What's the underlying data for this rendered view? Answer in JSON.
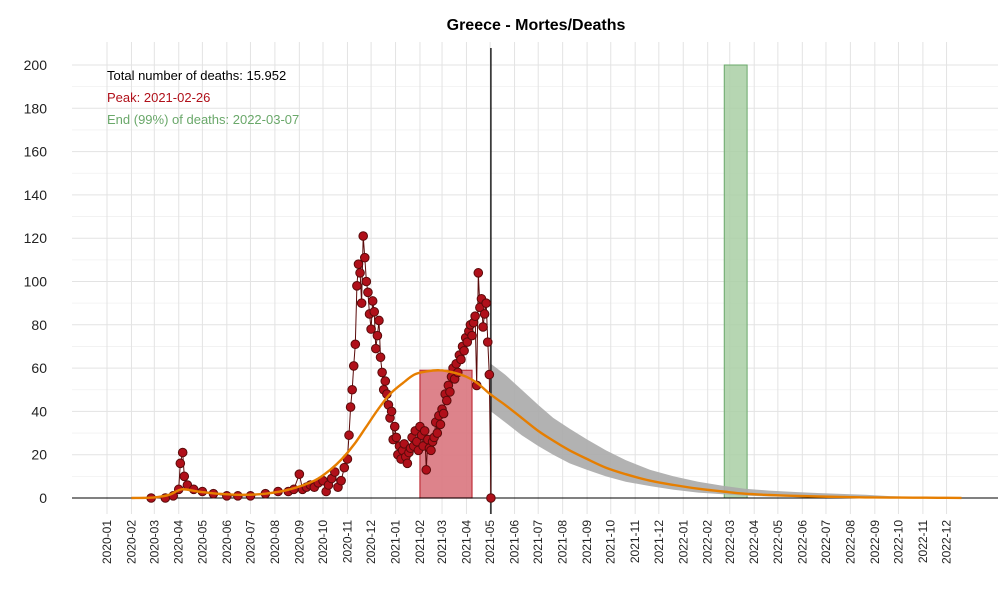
{
  "chart_data": {
    "type": "line",
    "title": "Greece - Mortes/Deaths",
    "xlabel": "",
    "ylabel": "",
    "xlim": [
      "2020-01-01",
      "2023-01-01"
    ],
    "ylim": [
      0,
      200
    ],
    "y_ticks": [
      0,
      20,
      40,
      60,
      80,
      100,
      120,
      140,
      160,
      180,
      200
    ],
    "x_ticks": [
      "2020-01",
      "2020-02",
      "2020-03",
      "2020-04",
      "2020-05",
      "2020-06",
      "2020-07",
      "2020-08",
      "2020-09",
      "2020-10",
      "2020-11",
      "2020-12",
      "2021-01",
      "2021-02",
      "2021-03",
      "2021-04",
      "2021-05",
      "2021-06",
      "2021-07",
      "2021-08",
      "2021-09",
      "2021-10",
      "2021-11",
      "2021-12",
      "2022-01",
      "2022-02",
      "2022-03",
      "2022-04",
      "2022-05",
      "2022-06",
      "2022-07",
      "2022-08",
      "2022-09",
      "2022-10",
      "2022-11",
      "2022-12"
    ],
    "grid": true,
    "annotations": {
      "total": "Total number of deaths: 15.952",
      "peak": "Peak: 2021-02-26",
      "end": "End (99%) of deaths: 2022-03-07"
    },
    "current_date": "2021-05-02",
    "peak_region": {
      "start": "2021-02-01",
      "end": "2021-04-08",
      "y": 59
    },
    "end_region": {
      "start": "2022-02-22",
      "end": "2022-03-23"
    },
    "observed_deaths": {
      "x": [
        "2020-02-26",
        "2020-03-15",
        "2020-03-25",
        "2020-04-01",
        "2020-04-03",
        "2020-04-06",
        "2020-04-08",
        "2020-04-12",
        "2020-04-20",
        "2020-05-01",
        "2020-05-15",
        "2020-06-01",
        "2020-06-15",
        "2020-07-01",
        "2020-07-20",
        "2020-08-05",
        "2020-08-18",
        "2020-08-25",
        "2020-09-01",
        "2020-09-05",
        "2020-09-10",
        "2020-09-15",
        "2020-09-20",
        "2020-09-25",
        "2020-10-01",
        "2020-10-05",
        "2020-10-08",
        "2020-10-12",
        "2020-10-16",
        "2020-10-20",
        "2020-10-24",
        "2020-10-28",
        "2020-11-01",
        "2020-11-03",
        "2020-11-05",
        "2020-11-07",
        "2020-11-09",
        "2020-11-11",
        "2020-11-13",
        "2020-11-15",
        "2020-11-17",
        "2020-11-19",
        "2020-11-21",
        "2020-11-23",
        "2020-11-25",
        "2020-11-27",
        "2020-11-29",
        "2020-12-01",
        "2020-12-03",
        "2020-12-05",
        "2020-12-07",
        "2020-12-09",
        "2020-12-11",
        "2020-12-13",
        "2020-12-15",
        "2020-12-17",
        "2020-12-19",
        "2020-12-21",
        "2020-12-23",
        "2020-12-25",
        "2020-12-27",
        "2020-12-29",
        "2020-12-31",
        "2021-01-02",
        "2021-01-04",
        "2021-01-06",
        "2021-01-08",
        "2021-01-10",
        "2021-01-12",
        "2021-01-14",
        "2021-01-16",
        "2021-01-18",
        "2021-01-20",
        "2021-01-22",
        "2021-01-24",
        "2021-01-26",
        "2021-01-28",
        "2021-01-30",
        "2021-02-01",
        "2021-02-03",
        "2021-02-05",
        "2021-02-07",
        "2021-02-09",
        "2021-02-11",
        "2021-02-13",
        "2021-02-15",
        "2021-02-17",
        "2021-02-19",
        "2021-02-21",
        "2021-02-23",
        "2021-02-25",
        "2021-02-27",
        "2021-03-01",
        "2021-03-03",
        "2021-03-05",
        "2021-03-07",
        "2021-03-09",
        "2021-03-11",
        "2021-03-13",
        "2021-03-15",
        "2021-03-17",
        "2021-03-19",
        "2021-03-21",
        "2021-03-23",
        "2021-03-25",
        "2021-03-27",
        "2021-03-29",
        "2021-03-31",
        "2021-04-02",
        "2021-04-04",
        "2021-04-06",
        "2021-04-08",
        "2021-04-10",
        "2021-04-12",
        "2021-04-14",
        "2021-04-16",
        "2021-04-18",
        "2021-04-20",
        "2021-04-22",
        "2021-04-24",
        "2021-04-26",
        "2021-04-28",
        "2021-04-30",
        "2021-05-02"
      ],
      "y": [
        0,
        0,
        1,
        4,
        16,
        21,
        10,
        6,
        4,
        3,
        2,
        1,
        1,
        1,
        2,
        3,
        3,
        4,
        11,
        4,
        5,
        6,
        5,
        7,
        8,
        3,
        6,
        9,
        12,
        5,
        8,
        14,
        18,
        29,
        42,
        50,
        61,
        71,
        98,
        108,
        104,
        90,
        121,
        111,
        100,
        95,
        85,
        78,
        91,
        86,
        69,
        75,
        82,
        65,
        58,
        50,
        54,
        48,
        43,
        37,
        40,
        27,
        33,
        28,
        20,
        24,
        18,
        22,
        25,
        19,
        16,
        21,
        23,
        28,
        24,
        31,
        26,
        22,
        33,
        29,
        24,
        31,
        13,
        27,
        23,
        22,
        26,
        28,
        35,
        30,
        38,
        34,
        41,
        39,
        48,
        45,
        52,
        49,
        56,
        60,
        55,
        62,
        58,
        66,
        64,
        70,
        68,
        74,
        72,
        77,
        80,
        75,
        81,
        84,
        52,
        104,
        88,
        92,
        79,
        85,
        90,
        72,
        57,
        0
      ]
    },
    "fitted_curve": {
      "x": [
        "2020-02-01",
        "2020-03-01",
        "2020-03-20",
        "2020-04-05",
        "2020-04-25",
        "2020-05-20",
        "2020-06-20",
        "2020-07-20",
        "2020-08-20",
        "2020-09-20",
        "2020-10-10",
        "2020-10-25",
        "2020-11-10",
        "2020-11-25",
        "2020-12-10",
        "2020-12-25",
        "2021-01-10",
        "2021-01-25",
        "2021-02-10",
        "2021-02-26",
        "2021-03-15",
        "2021-04-01",
        "2021-04-15",
        "2021-05-01",
        "2021-05-20",
        "2021-06-10",
        "2021-07-01",
        "2021-07-20",
        "2021-08-10",
        "2021-09-01",
        "2021-09-25",
        "2021-10-20",
        "2021-11-20",
        "2021-12-20",
        "2022-01-20",
        "2022-02-20",
        "2022-03-20",
        "2022-04-20",
        "2022-05-20",
        "2022-06-20",
        "2022-07-20",
        "2022-08-20",
        "2022-09-20",
        "2022-10-20",
        "2022-11-20",
        "2022-12-20"
      ],
      "y": [
        0,
        0.3,
        1.5,
        4,
        3,
        2,
        1.5,
        2,
        4,
        8,
        13,
        18,
        25,
        33,
        41,
        48,
        53,
        57,
        58.5,
        59,
        58,
        56,
        53,
        48,
        43,
        37,
        31,
        26.5,
        22,
        18,
        14,
        11,
        8,
        6,
        4.3,
        3,
        2,
        1.4,
        1,
        0.7,
        0.5,
        0.3,
        0.2,
        0.15,
        0.1,
        0.05
      ]
    },
    "forecast_band": {
      "x": [
        "2021-05-02",
        "2021-05-20",
        "2021-06-10",
        "2021-07-01",
        "2021-07-20",
        "2021-08-10",
        "2021-09-01",
        "2021-09-25",
        "2021-10-20",
        "2021-11-20",
        "2021-12-20",
        "2022-01-20",
        "2022-02-20",
        "2022-03-20",
        "2022-04-20",
        "2022-05-20",
        "2022-06-20",
        "2022-07-20",
        "2022-08-20",
        "2022-09-20",
        "2022-10-20",
        "2022-11-20",
        "2022-12-20"
      ],
      "lower": [
        40,
        35,
        29,
        24,
        20,
        16,
        13,
        10,
        7.5,
        5.5,
        3.8,
        2.5,
        1.7,
        1.1,
        0.7,
        0.5,
        0.3,
        0.2,
        0.1,
        0.05,
        0.03,
        0.02,
        0
      ],
      "upper": [
        62,
        57,
        50,
        43,
        37,
        32,
        27,
        22,
        17.5,
        13,
        10,
        7.5,
        5.7,
        4.3,
        3.4,
        2.8,
        2.3,
        1.9,
        1.5,
        0.9,
        0.5,
        0.3,
        0.1
      ]
    },
    "colors": {
      "points": "#b0101a",
      "points_stroke": "#5a0a0a",
      "curve": "#e67e00",
      "band": "#aaaaaa",
      "peak_fill": "#d9757e",
      "end_fill": "#a9cfa4",
      "total_text": "#000000",
      "peak_text": "#b0101a",
      "end_text": "#6aa86a"
    }
  }
}
